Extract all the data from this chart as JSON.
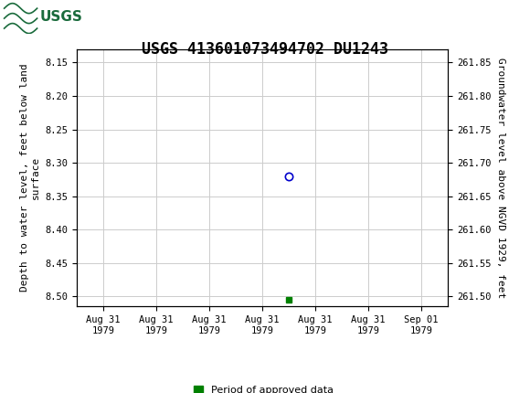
{
  "title": "USGS 413601073494702 DU1243",
  "ylabel_left": "Depth to water level, feet below land\nsurface",
  "ylabel_right": "Groundwater level above NGVD 1929, feet",
  "ylim_left": [
    8.515,
    8.13
  ],
  "ylim_right": [
    261.485,
    261.87
  ],
  "yticks_left": [
    8.15,
    8.2,
    8.25,
    8.3,
    8.35,
    8.4,
    8.45,
    8.5
  ],
  "yticks_right": [
    261.85,
    261.8,
    261.75,
    261.7,
    261.65,
    261.6,
    261.55,
    261.5
  ],
  "data_point_x": 3.5,
  "data_point_y": 8.32,
  "data_point_color": "#0000cc",
  "data_point_marker": "o",
  "green_marker_x": 3.5,
  "green_marker_y": 8.505,
  "green_marker_color": "#008000",
  "green_marker_marker": "s",
  "xtick_positions": [
    0,
    1,
    2,
    3,
    4,
    5,
    6
  ],
  "xtick_labels": [
    "Aug 31\n1979",
    "Aug 31\n1979",
    "Aug 31\n1979",
    "Aug 31\n1979",
    "Aug 31\n1979",
    "Aug 31\n1979",
    "Sep 01\n1979"
  ],
  "grid_color": "#cccccc",
  "bg_color": "#ffffff",
  "plot_bg_color": "#ffffff",
  "header_color": "#1a6b3c",
  "legend_label": "Period of approved data",
  "legend_color": "#008000",
  "title_fontsize": 12,
  "axis_fontsize": 8,
  "tick_fontsize": 7.5
}
